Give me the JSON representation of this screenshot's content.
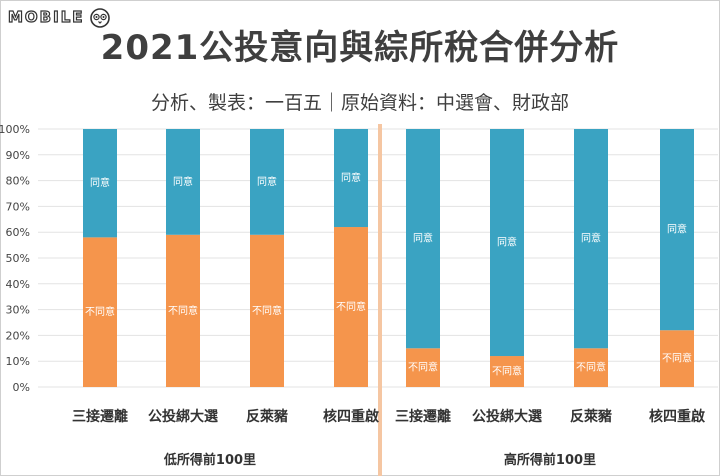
{
  "logo": {
    "text": "MOBILE",
    "icon": "owl-mascot-icon"
  },
  "chart_data": {
    "type": "bar",
    "stacked": true,
    "title": "2021公投意向與綜所稅合併分析",
    "subtitle": "分析、製表：一百五｜原始資料：中選會、財政部",
    "ylim": [
      0,
      100
    ],
    "yticks": [
      "0%",
      "10%",
      "20%",
      "30%",
      "40%",
      "50%",
      "60%",
      "70%",
      "80%",
      "90%",
      "100%"
    ],
    "grid": true,
    "colors": {
      "disagree": "#f5954c",
      "agree": "#3aa3c2",
      "divider": "#f5c6a2"
    },
    "groups": [
      {
        "label": "低所得前100里",
        "categories": [
          "三接遷離",
          "公投綁大選",
          "反萊豬",
          "核四重啟"
        ],
        "series": [
          {
            "name": "不同意",
            "values": [
              58,
              59,
              59,
              62
            ]
          },
          {
            "name": "同意",
            "values": [
              42,
              41,
              41,
              38
            ]
          }
        ]
      },
      {
        "label": "高所得前100里",
        "categories": [
          "三接遷離",
          "公投綁大選",
          "反萊豬",
          "核四重啟"
        ],
        "series": [
          {
            "name": "不同意",
            "values": [
              15,
              12,
              15,
              22
            ]
          },
          {
            "name": "同意",
            "values": [
              85,
              88,
              85,
              78
            ]
          }
        ]
      }
    ]
  }
}
